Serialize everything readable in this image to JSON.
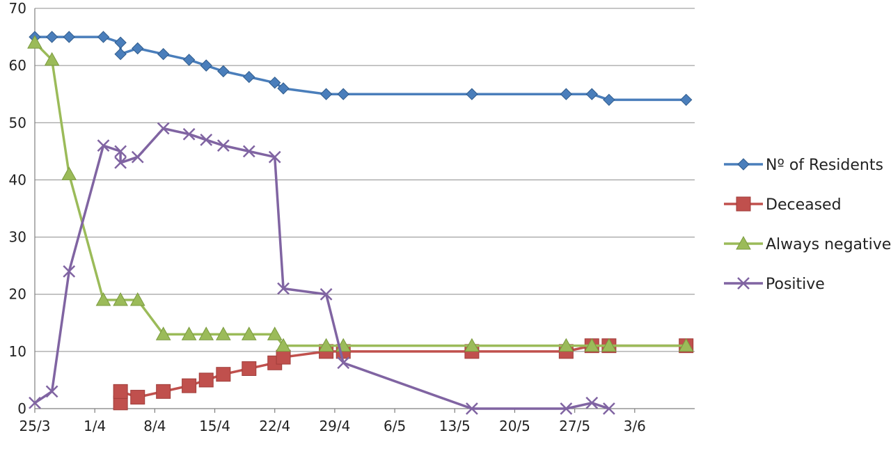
{
  "chart_data": {
    "type": "line",
    "title": "",
    "xlabel": "",
    "ylabel": "",
    "ylim": [
      0,
      70
    ],
    "yticks": [
      0,
      10,
      20,
      30,
      40,
      50,
      60,
      70
    ],
    "grid": "horizontal",
    "legend_position": "right",
    "x_axis": {
      "type": "date",
      "range": [
        "2020-03-25",
        "2020-06-10"
      ],
      "tick_labels": [
        "25/3",
        "1/4",
        "8/4",
        "15/4",
        "22/4",
        "29/4",
        "6/5",
        "13/5",
        "20/5",
        "27/5",
        "3/6"
      ],
      "tick_dates": [
        "2020-03-25",
        "2020-04-01",
        "2020-04-08",
        "2020-04-15",
        "2020-04-22",
        "2020-04-29",
        "2020-05-06",
        "2020-05-13",
        "2020-05-20",
        "2020-05-27",
        "2020-06-03"
      ]
    },
    "series": [
      {
        "name": "Nº of Residents",
        "color": "#4A7EBB",
        "marker": "diamond",
        "points": [
          [
            "2020-03-25",
            65
          ],
          [
            "2020-03-27",
            65
          ],
          [
            "2020-03-29",
            65
          ],
          [
            "2020-04-02",
            65
          ],
          [
            "2020-04-04",
            64
          ],
          [
            "2020-04-04",
            62
          ],
          [
            "2020-04-06",
            63
          ],
          [
            "2020-04-09",
            62
          ],
          [
            "2020-04-12",
            61
          ],
          [
            "2020-04-14",
            60
          ],
          [
            "2020-04-16",
            59
          ],
          [
            "2020-04-19",
            58
          ],
          [
            "2020-04-22",
            57
          ],
          [
            "2020-04-23",
            56
          ],
          [
            "2020-04-28",
            55
          ],
          [
            "2020-04-30",
            55
          ],
          [
            "2020-05-15",
            55
          ],
          [
            "2020-05-26",
            55
          ],
          [
            "2020-05-29",
            55
          ],
          [
            "2020-05-31",
            54
          ],
          [
            "2020-06-09",
            54
          ]
        ]
      },
      {
        "name": "Deceased",
        "color": "#C0504D",
        "marker": "square",
        "points": [
          [
            "2020-04-04",
            1
          ],
          [
            "2020-04-04",
            3
          ],
          [
            "2020-04-06",
            2
          ],
          [
            "2020-04-09",
            3
          ],
          [
            "2020-04-12",
            4
          ],
          [
            "2020-04-14",
            5
          ],
          [
            "2020-04-16",
            6
          ],
          [
            "2020-04-19",
            7
          ],
          [
            "2020-04-22",
            8
          ],
          [
            "2020-04-23",
            9
          ],
          [
            "2020-04-28",
            10
          ],
          [
            "2020-04-30",
            10
          ],
          [
            "2020-05-15",
            10
          ],
          [
            "2020-05-26",
            10
          ],
          [
            "2020-05-29",
            11
          ],
          [
            "2020-05-31",
            11
          ],
          [
            "2020-06-09",
            11
          ]
        ]
      },
      {
        "name": "Always negative",
        "color": "#9BBB59",
        "marker": "triangle",
        "points": [
          [
            "2020-03-25",
            64
          ],
          [
            "2020-03-27",
            61
          ],
          [
            "2020-03-29",
            41
          ],
          [
            "2020-04-02",
            19
          ],
          [
            "2020-04-04",
            19
          ],
          [
            "2020-04-06",
            19
          ],
          [
            "2020-04-09",
            13
          ],
          [
            "2020-04-12",
            13
          ],
          [
            "2020-04-14",
            13
          ],
          [
            "2020-04-16",
            13
          ],
          [
            "2020-04-19",
            13
          ],
          [
            "2020-04-22",
            13
          ],
          [
            "2020-04-23",
            11
          ],
          [
            "2020-04-28",
            11
          ],
          [
            "2020-04-30",
            11
          ],
          [
            "2020-05-15",
            11
          ],
          [
            "2020-05-26",
            11
          ],
          [
            "2020-05-29",
            11
          ],
          [
            "2020-05-31",
            11
          ],
          [
            "2020-06-09",
            11
          ]
        ]
      },
      {
        "name": "Positive",
        "color": "#8064A2",
        "marker": "x",
        "points": [
          [
            "2020-03-25",
            1
          ],
          [
            "2020-03-27",
            3
          ],
          [
            "2020-03-29",
            24
          ],
          [
            "2020-04-02",
            46
          ],
          [
            "2020-04-04",
            45
          ],
          [
            "2020-04-04",
            43
          ],
          [
            "2020-04-06",
            44
          ],
          [
            "2020-04-09",
            49
          ],
          [
            "2020-04-12",
            48
          ],
          [
            "2020-04-14",
            47
          ],
          [
            "2020-04-16",
            46
          ],
          [
            "2020-04-19",
            45
          ],
          [
            "2020-04-22",
            44
          ],
          [
            "2020-04-23",
            21
          ],
          [
            "2020-04-28",
            20
          ],
          [
            "2020-04-30",
            8
          ],
          [
            "2020-05-15",
            0
          ],
          [
            "2020-05-26",
            0
          ],
          [
            "2020-05-29",
            1
          ],
          [
            "2020-05-31",
            0
          ]
        ]
      }
    ]
  }
}
